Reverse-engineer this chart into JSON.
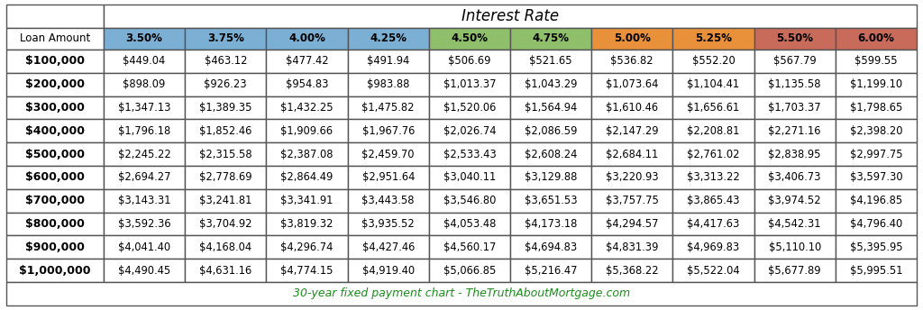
{
  "title": "Interest Rate",
  "footer": "30-year fixed payment chart - TheTruthAboutMortgage.com",
  "col_header": [
    "3.50%",
    "3.75%",
    "4.00%",
    "4.25%",
    "4.50%",
    "4.75%",
    "5.00%",
    "5.25%",
    "5.50%",
    "6.00%"
  ],
  "row_header": [
    "Loan Amount",
    "$100,000",
    "$200,000",
    "$300,000",
    "$400,000",
    "$500,000",
    "$600,000",
    "$700,000",
    "$800,000",
    "$900,000",
    "$1,000,000"
  ],
  "col_header_colors": [
    "#7BAFD4",
    "#7BAFD4",
    "#7BAFD4",
    "#7BAFD4",
    "#8FBF6A",
    "#8FBF6A",
    "#E8913A",
    "#E8913A",
    "#C96B5A",
    "#C96B5A"
  ],
  "data": [
    [
      "$449.04",
      "$463.12",
      "$477.42",
      "$491.94",
      "$506.69",
      "$521.65",
      "$536.82",
      "$552.20",
      "$567.79",
      "$599.55"
    ],
    [
      "$898.09",
      "$926.23",
      "$954.83",
      "$983.88",
      "$1,013.37",
      "$1,043.29",
      "$1,073.64",
      "$1,104.41",
      "$1,135.58",
      "$1,199.10"
    ],
    [
      "$1,347.13",
      "$1,389.35",
      "$1,432.25",
      "$1,475.82",
      "$1,520.06",
      "$1,564.94",
      "$1,610.46",
      "$1,656.61",
      "$1,703.37",
      "$1,798.65"
    ],
    [
      "$1,796.18",
      "$1,852.46",
      "$1,909.66",
      "$1,967.76",
      "$2,026.74",
      "$2,086.59",
      "$2,147.29",
      "$2,208.81",
      "$2,271.16",
      "$2,398.20"
    ],
    [
      "$2,245.22",
      "$2,315.58",
      "$2,387.08",
      "$2,459.70",
      "$2,533.43",
      "$2,608.24",
      "$2,684.11",
      "$2,761.02",
      "$2,838.95",
      "$2,997.75"
    ],
    [
      "$2,694.27",
      "$2,778.69",
      "$2,864.49",
      "$2,951.64",
      "$3,040.11",
      "$3,129.88",
      "$3,220.93",
      "$3,313.22",
      "$3,406.73",
      "$3,597.30"
    ],
    [
      "$3,143.31",
      "$3,241.81",
      "$3,341.91",
      "$3,443.58",
      "$3,546.80",
      "$3,651.53",
      "$3,757.75",
      "$3,865.43",
      "$3,974.52",
      "$4,196.85"
    ],
    [
      "$3,592.36",
      "$3,704.92",
      "$3,819.32",
      "$3,935.52",
      "$4,053.48",
      "$4,173.18",
      "$4,294.57",
      "$4,417.63",
      "$4,542.31",
      "$4,796.40"
    ],
    [
      "$4,041.40",
      "$4,168.04",
      "$4,296.74",
      "$4,427.46",
      "$4,560.17",
      "$4,694.83",
      "$4,831.39",
      "$4,969.83",
      "$5,110.10",
      "$5,395.95"
    ],
    [
      "$4,490.45",
      "$4,631.16",
      "$4,774.15",
      "$4,919.40",
      "$5,066.85",
      "$5,216.47",
      "$5,368.22",
      "$5,522.04",
      "$5,677.89",
      "$5,995.51"
    ]
  ],
  "bg_color": "#FFFFFF",
  "border_color": "#555555",
  "footer_color": "#1A8C1A",
  "fig_width": 10.24,
  "fig_height": 3.44,
  "dpi": 100
}
